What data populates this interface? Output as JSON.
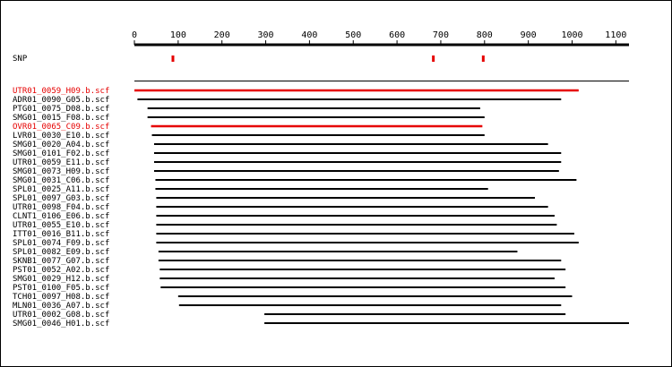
{
  "colors": {
    "black": "#000000",
    "red": "#e60000",
    "background": "#ffffff"
  },
  "axis": {
    "min": 0,
    "max": 1130,
    "ticks": [
      0,
      100,
      200,
      300,
      400,
      500,
      600,
      700,
      800,
      900,
      1000,
      1100
    ]
  },
  "snp": {
    "label": "SNP",
    "positions": [
      88,
      683,
      797
    ]
  },
  "reference_span": [
    0,
    1130
  ],
  "reads": [
    {
      "name": "UTR01_0059_H09.b.scf",
      "start": 0,
      "end": 1015,
      "highlight": true
    },
    {
      "name": "ADR01_0090_G05.b.scf",
      "start": 7,
      "end": 975,
      "highlight": false
    },
    {
      "name": "PTG01_0075_D08.b.scf",
      "start": 30,
      "end": 790,
      "highlight": false
    },
    {
      "name": "SMG01_0015_F08.b.scf",
      "start": 30,
      "end": 800,
      "highlight": false
    },
    {
      "name": "OVR01_0065_C09.b.scf",
      "start": 38,
      "end": 795,
      "highlight": true
    },
    {
      "name": "LVR01_0030_E10.b.scf",
      "start": 40,
      "end": 800,
      "highlight": false
    },
    {
      "name": "SMG01_0020_A04.b.scf",
      "start": 45,
      "end": 945,
      "highlight": false
    },
    {
      "name": "SMG01_0101_F02.b.scf",
      "start": 45,
      "end": 975,
      "highlight": false
    },
    {
      "name": "UTR01_0059_E11.b.scf",
      "start": 45,
      "end": 975,
      "highlight": false
    },
    {
      "name": "SMG01_0073_H09.b.scf",
      "start": 45,
      "end": 970,
      "highlight": false
    },
    {
      "name": "SMG01_0031_C06.b.scf",
      "start": 48,
      "end": 1010,
      "highlight": false
    },
    {
      "name": "SPL01_0025_A11.b.scf",
      "start": 48,
      "end": 808,
      "highlight": false
    },
    {
      "name": "SPL01_0097_G03.b.scf",
      "start": 50,
      "end": 915,
      "highlight": false
    },
    {
      "name": "UTR01_0098_F04.b.scf",
      "start": 50,
      "end": 945,
      "highlight": false
    },
    {
      "name": "CLNT1_0106_E06.b.scf",
      "start": 50,
      "end": 960,
      "highlight": false
    },
    {
      "name": "UTR01_0055_E10.b.scf",
      "start": 50,
      "end": 965,
      "highlight": false
    },
    {
      "name": "ITT01_0016_B11.b.scf",
      "start": 50,
      "end": 1005,
      "highlight": false
    },
    {
      "name": "SPL01_0074_F09.b.scf",
      "start": 50,
      "end": 1015,
      "highlight": false
    },
    {
      "name": "SPL01_0082_E09.b.scf",
      "start": 55,
      "end": 875,
      "highlight": false
    },
    {
      "name": "SKNB1_0077_G07.b.scf",
      "start": 55,
      "end": 975,
      "highlight": false
    },
    {
      "name": "PST01_0052_A02.b.scf",
      "start": 58,
      "end": 985,
      "highlight": false
    },
    {
      "name": "SMG01_0029_H12.b.scf",
      "start": 58,
      "end": 960,
      "highlight": false
    },
    {
      "name": "PST01_0100_F05.b.scf",
      "start": 60,
      "end": 985,
      "highlight": false
    },
    {
      "name": "TCH01_0097_H08.b.scf",
      "start": 100,
      "end": 1000,
      "highlight": false
    },
    {
      "name": "MLN01_0036_A07.b.scf",
      "start": 102,
      "end": 975,
      "highlight": false
    },
    {
      "name": "UTR01_0002_G08.b.scf",
      "start": 297,
      "end": 985,
      "highlight": false
    },
    {
      "name": "SMG01_0046_H01.b.scf",
      "start": 297,
      "end": 1130,
      "highlight": false
    }
  ]
}
